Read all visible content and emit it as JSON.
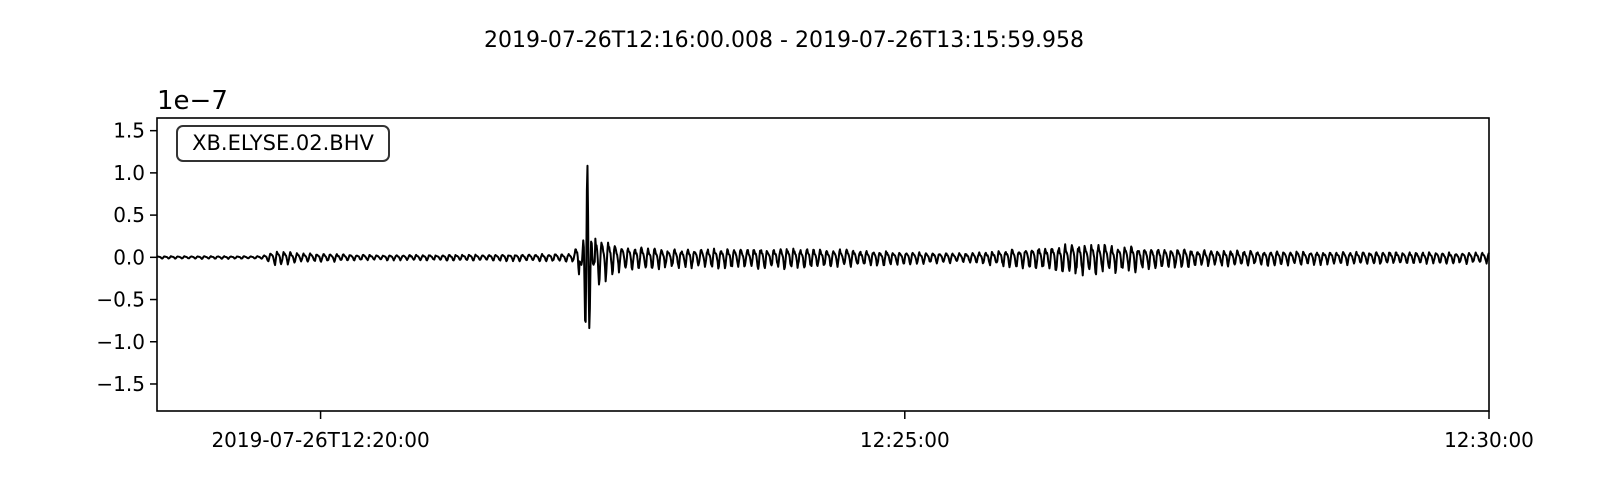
{
  "chart_data": {
    "type": "line",
    "title": "2019-07-26T12:16:00.008  -  2019-07-26T13:15:59.958",
    "trace_label": "XB.ELYSE.02.BHV",
    "y_offset_label": "1e−7",
    "y_scale_exponent": -7,
    "xlabel": "",
    "ylabel": "",
    "x_start": "2019-07-26T12:18:36",
    "x_end": "2019-07-26T12:30:00",
    "xlim": [
      "2019-07-26T12:18:36",
      "2019-07-26T12:30:00"
    ],
    "ylim": [
      -1.82,
      1.65
    ],
    "x_ticks": [
      {
        "time": "2019-07-26T12:20:00",
        "label": "2019-07-26T12:20:00"
      },
      {
        "time": "2019-07-26T12:25:00",
        "label": "12:25:00"
      },
      {
        "time": "2019-07-26T12:30:00",
        "label": "12:30:00"
      }
    ],
    "y_ticks": [
      {
        "value": 1.5,
        "label": "1.5"
      },
      {
        "value": 1.0,
        "label": "1.0"
      },
      {
        "value": 0.5,
        "label": "0.5"
      },
      {
        "value": 0.0,
        "label": "0.0"
      },
      {
        "value": -0.5,
        "label": "−0.5"
      },
      {
        "value": -1.0,
        "label": "−1.0"
      },
      {
        "value": -1.5,
        "label": "−1.5"
      }
    ],
    "grid": false,
    "line_color": "#000000",
    "series": [
      {
        "envelope_points": [
          [
            "2019-07-26T12:18:36",
            0.02
          ],
          [
            "2019-07-26T12:19:30",
            0.02
          ],
          [
            "2019-07-26T12:19:38",
            0.12
          ],
          [
            "2019-07-26T12:19:50",
            0.07
          ],
          [
            "2019-07-26T12:20:30",
            0.04
          ],
          [
            "2019-07-26T12:21:30",
            0.05
          ],
          [
            "2019-07-26T12:22:10",
            0.06
          ],
          [
            "2019-07-26T12:22:12",
            0.28
          ],
          [
            "2019-07-26T12:22:14",
            0.45
          ],
          [
            "2019-07-26T12:22:17",
            1.15
          ],
          [
            "2019-07-26T12:22:20",
            0.55
          ],
          [
            "2019-07-26T12:22:24",
            0.35
          ],
          [
            "2019-07-26T12:22:32",
            0.2
          ],
          [
            "2019-07-26T12:23:00",
            0.14
          ],
          [
            "2019-07-26T12:24:00",
            0.16
          ],
          [
            "2019-07-26T12:25:30",
            0.07
          ],
          [
            "2019-07-26T12:26:00",
            0.15
          ],
          [
            "2019-07-26T12:26:30",
            0.24
          ],
          [
            "2019-07-26T12:27:30",
            0.13
          ],
          [
            "2019-07-26T12:28:30",
            0.1
          ],
          [
            "2019-07-26T12:30:00",
            0.08
          ]
        ]
      }
    ]
  }
}
